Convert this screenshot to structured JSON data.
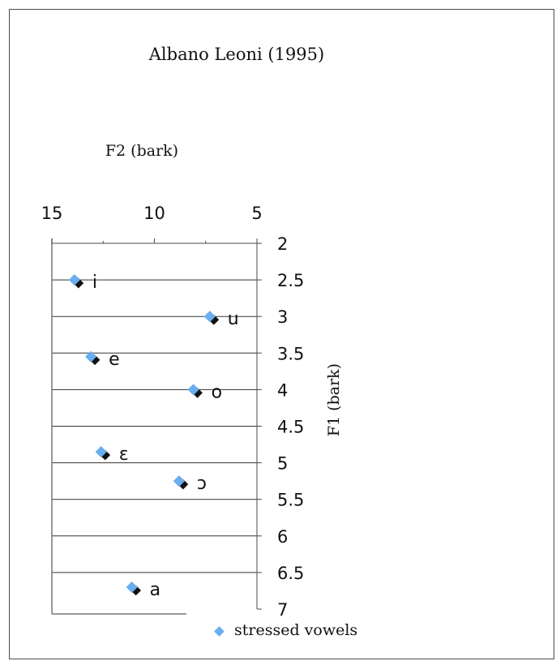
{
  "chart_data": {
    "type": "scatter",
    "title": "Albano Leoni (1995)",
    "xlabel": "F2 (bark)",
    "ylabel": "F1 (bark)",
    "x_axis": {
      "reversed": true,
      "position": "top",
      "ticks": [
        "15",
        "10",
        "5"
      ],
      "range": [
        15,
        5
      ]
    },
    "y_axis": {
      "reversed": true,
      "position": "right",
      "ticks": [
        "2",
        "2.5",
        "3",
        "3.5",
        "4",
        "4.5",
        "5",
        "5.5",
        "6",
        "6.5",
        "7"
      ],
      "range": [
        2,
        7
      ]
    },
    "grid": "horizontal",
    "legend": {
      "position": "bottom",
      "entries": [
        "stressed vowels"
      ]
    },
    "series": [
      {
        "name": "stressed vowels",
        "color": "#6aaef0",
        "points": [
          {
            "label": "i",
            "x": 13.9,
            "y": 2.5
          },
          {
            "label": "u",
            "x": 7.3,
            "y": 3.0
          },
          {
            "label": "e",
            "x": 13.1,
            "y": 3.55
          },
          {
            "label": "o",
            "x": 8.1,
            "y": 4.0
          },
          {
            "label": "ɛ",
            "x": 12.6,
            "y": 4.85
          },
          {
            "label": "ɔ",
            "x": 8.8,
            "y": 5.25
          },
          {
            "label": "a",
            "x": 11.1,
            "y": 6.7
          }
        ]
      }
    ]
  }
}
